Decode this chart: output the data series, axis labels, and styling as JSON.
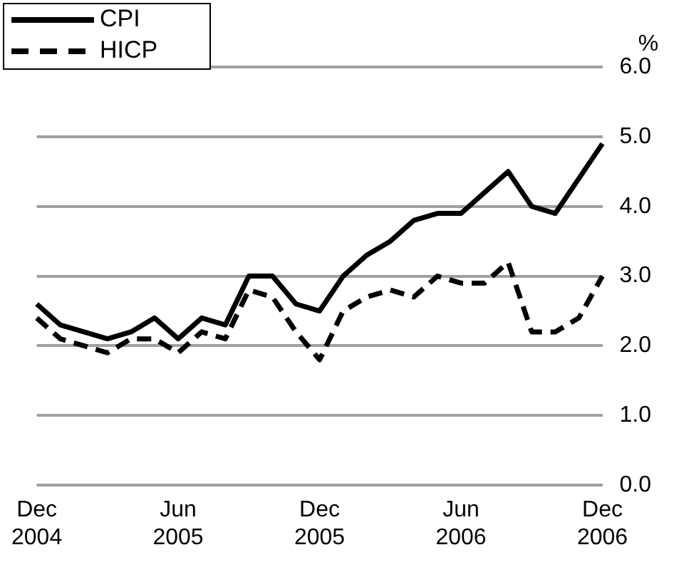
{
  "chart_data": {
    "type": "line",
    "ylabel": "%",
    "categories": [
      "Dec 2004",
      null,
      null,
      null,
      null,
      null,
      "Jun 2005",
      null,
      null,
      null,
      null,
      null,
      "Dec 2005",
      null,
      null,
      null,
      null,
      null,
      "Jun 2006",
      null,
      null,
      null,
      null,
      null,
      "Dec 2006"
    ],
    "series": [
      {
        "name": "CPI",
        "color": "#000000",
        "line_style": "solid",
        "values": [
          2.6,
          2.3,
          2.2,
          2.1,
          2.2,
          2.4,
          2.1,
          2.4,
          2.3,
          3.0,
          3.0,
          2.6,
          2.5,
          3.0,
          3.3,
          3.5,
          3.8,
          3.9,
          3.9,
          4.2,
          4.5,
          4.0,
          3.9,
          4.4,
          4.9
        ]
      },
      {
        "name": "HICP",
        "color": "#000000",
        "line_style": "dashed",
        "values": [
          2.4,
          2.1,
          2.0,
          1.9,
          2.1,
          2.1,
          1.9,
          2.2,
          2.1,
          2.8,
          2.7,
          2.2,
          1.8,
          2.5,
          2.7,
          2.8,
          2.7,
          3.0,
          2.9,
          2.9,
          3.2,
          2.2,
          2.2,
          2.4,
          3.0
        ]
      }
    ],
    "ylim": [
      0,
      6
    ],
    "yticks": [
      {
        "value": 0,
        "label": "0.0"
      },
      {
        "value": 1,
        "label": "1.0"
      },
      {
        "value": 2,
        "label": "2.0"
      },
      {
        "value": 3,
        "label": "3.0"
      },
      {
        "value": 4,
        "label": "4.0"
      },
      {
        "value": 5,
        "label": "5.0"
      },
      {
        "value": 6,
        "label": "6.0"
      }
    ],
    "grid": "y",
    "legend": "top left"
  }
}
